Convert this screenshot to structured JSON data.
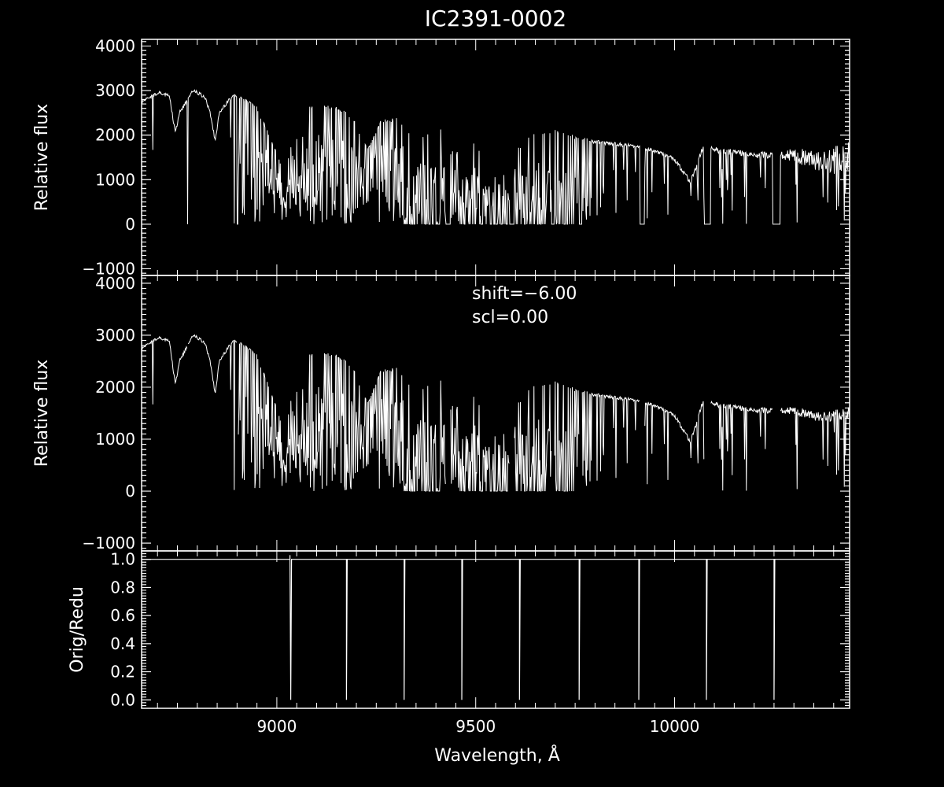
{
  "chart_data": {
    "type": "line",
    "title": "IC2391-0002",
    "xlabel": "Wavelength, Å",
    "xlim": [
      8660,
      10440
    ],
    "xticks": [
      {
        "value": 9000,
        "label": "9000"
      },
      {
        "value": 9500,
        "label": "9500"
      },
      {
        "value": 10000,
        "label": "10000"
      }
    ],
    "colors": {
      "background": "#000000",
      "foreground": "#ffffff"
    },
    "panels": [
      {
        "id": "top",
        "ylabel": "Relative flux",
        "ylim": [
          -1150,
          4150
        ],
        "yticks": [
          {
            "value": 4000,
            "label": "4000"
          },
          {
            "value": 3000,
            "label": "3000"
          },
          {
            "value": 2000,
            "label": "2000"
          },
          {
            "value": 1000,
            "label": "1000"
          },
          {
            "value": 0,
            "label": "0"
          },
          {
            "value": -1000,
            "label": "−1000"
          }
        ],
        "series": [
          {
            "continuum": [
              [
                8660,
                2750
              ],
              [
                8700,
                2950
              ],
              [
                8730,
                2900
              ],
              [
                8740,
                2300
              ],
              [
                8745,
                2050
              ],
              [
                8755,
                2500
              ],
              [
                8790,
                3000
              ],
              [
                8820,
                2850
              ],
              [
                8835,
                2400
              ],
              [
                8845,
                1850
              ],
              [
                8855,
                2500
              ],
              [
                8890,
                2900
              ],
              [
                8910,
                2850
              ],
              [
                8950,
                2600
              ],
              [
                9000,
                1600
              ],
              [
                9020,
                1000
              ],
              [
                9050,
                2500
              ],
              [
                9100,
                2650
              ],
              [
                9150,
                2600
              ],
              [
                9190,
                2400
              ],
              [
                9210,
                2000
              ],
              [
                9230,
                1700
              ],
              [
                9260,
                2300
              ],
              [
                9300,
                2350
              ],
              [
                9350,
                1900
              ],
              [
                9400,
                2150
              ],
              [
                9450,
                2050
              ],
              [
                9500,
                1800
              ],
              [
                9540,
                1200
              ],
              [
                9560,
                850
              ],
              [
                9590,
                1500
              ],
              [
                9640,
                2000
              ],
              [
                9700,
                2100
              ],
              [
                9750,
                1950
              ],
              [
                9800,
                1850
              ],
              [
                9850,
                1800
              ],
              [
                9900,
                1750
              ],
              [
                9950,
                1650
              ],
              [
                10000,
                1450
              ],
              [
                10040,
                950
              ],
              [
                10070,
                1700
              ],
              [
                10120,
                1650
              ],
              [
                10200,
                1550
              ],
              [
                10300,
                1550
              ],
              [
                10350,
                1450
              ],
              [
                10400,
                1450
              ],
              [
                10440,
                1500
              ]
            ],
            "line_depth": [
              [
                8660,
                0.02
              ],
              [
                8890,
                0.02
              ],
              [
                8910,
                0.35
              ],
              [
                8980,
                0.65
              ],
              [
                9060,
                0.85
              ],
              [
                9180,
                0.75
              ],
              [
                9260,
                0.55
              ],
              [
                9320,
                0.95
              ],
              [
                9620,
                0.9
              ],
              [
                9760,
                0.7
              ],
              [
                9800,
                0.3
              ],
              [
                9860,
                0.12
              ],
              [
                9930,
                0.05
              ],
              [
                10440,
                0.08
              ]
            ],
            "noise": [
              [
                8660,
                40
              ],
              [
                9900,
                40
              ],
              [
                10250,
                80
              ],
              [
                10440,
                350
              ]
            ],
            "gaps": [
              [
                8775,
                8777,
                0
              ],
              [
                8900,
                8902,
                0
              ],
              [
                9425,
                9437,
                0
              ],
              [
                9585,
                9597,
                0
              ],
              [
                9690,
                9698,
                0
              ],
              [
                9760,
                9768,
                0
              ],
              [
                9912,
                9924,
                0
              ],
              [
                10074,
                10090,
                0
              ],
              [
                10246,
                10266,
                0
              ]
            ],
            "deep": [
              [
                9320,
                9410
              ],
              [
                9460,
                9580
              ],
              [
                9600,
                9680
              ],
              [
                9700,
                9750
              ]
            ]
          }
        ]
      },
      {
        "id": "middle",
        "ylabel": "Relative flux",
        "ylim": [
          -1150,
          4150
        ],
        "yticks": [
          {
            "value": 4000,
            "label": "4000"
          },
          {
            "value": 3000,
            "label": "3000"
          },
          {
            "value": 2000,
            "label": "2000"
          },
          {
            "value": 1000,
            "label": "1000"
          },
          {
            "value": 0,
            "label": "0"
          },
          {
            "value": -1000,
            "label": "−1000"
          }
        ],
        "annotations": [
          {
            "text": "shift=−6.00",
            "x": 9390,
            "y": 3650
          },
          {
            "text": "scl=0.00",
            "x": 9390,
            "y": 3250
          }
        ],
        "series": [
          {
            "continuum": [
              [
                8660,
                2750
              ],
              [
                8700,
                2950
              ],
              [
                8730,
                2900
              ],
              [
                8740,
                2300
              ],
              [
                8745,
                2050
              ],
              [
                8755,
                2500
              ],
              [
                8790,
                3000
              ],
              [
                8820,
                2850
              ],
              [
                8835,
                2400
              ],
              [
                8845,
                1850
              ],
              [
                8855,
                2500
              ],
              [
                8890,
                2900
              ],
              [
                8910,
                2850
              ],
              [
                8950,
                2600
              ],
              [
                9000,
                1600
              ],
              [
                9020,
                1000
              ],
              [
                9050,
                2500
              ],
              [
                9100,
                2650
              ],
              [
                9150,
                2600
              ],
              [
                9190,
                2400
              ],
              [
                9210,
                2000
              ],
              [
                9230,
                1700
              ],
              [
                9260,
                2300
              ],
              [
                9300,
                2350
              ],
              [
                9350,
                1900
              ],
              [
                9400,
                2150
              ],
              [
                9450,
                2050
              ],
              [
                9500,
                1800
              ],
              [
                9540,
                1200
              ],
              [
                9560,
                850
              ],
              [
                9590,
                1500
              ],
              [
                9640,
                2000
              ],
              [
                9700,
                2100
              ],
              [
                9750,
                1950
              ],
              [
                9800,
                1850
              ],
              [
                9850,
                1800
              ],
              [
                9900,
                1750
              ],
              [
                9950,
                1650
              ],
              [
                10000,
                1450
              ],
              [
                10040,
                950
              ],
              [
                10070,
                1700
              ],
              [
                10120,
                1650
              ],
              [
                10200,
                1550
              ],
              [
                10300,
                1550
              ],
              [
                10350,
                1450
              ],
              [
                10400,
                1450
              ],
              [
                10440,
                1500
              ]
            ],
            "line_depth": [
              [
                8660,
                0.02
              ],
              [
                8890,
                0.02
              ],
              [
                8910,
                0.35
              ],
              [
                8980,
                0.65
              ],
              [
                9060,
                0.85
              ],
              [
                9180,
                0.75
              ],
              [
                9260,
                0.55
              ],
              [
                9320,
                0.95
              ],
              [
                9620,
                0.9
              ],
              [
                9760,
                0.7
              ],
              [
                9800,
                0.3
              ],
              [
                9860,
                0.12
              ],
              [
                9930,
                0.05
              ],
              [
                10440,
                0.08
              ]
            ],
            "noise": [
              [
                8660,
                30
              ],
              [
                9900,
                30
              ],
              [
                10250,
                60
              ],
              [
                10440,
                120
              ]
            ],
            "gaps": [
              [
                8775,
                8777,
                -1
              ],
              [
                8900,
                8902,
                -1
              ],
              [
                9425,
                9437,
                -1
              ],
              [
                9585,
                9597,
                -1
              ],
              [
                9690,
                9698,
                -1
              ],
              [
                9760,
                9768,
                -1
              ],
              [
                9912,
                9924,
                -1
              ],
              [
                10074,
                10090,
                -1
              ],
              [
                10246,
                10266,
                -1
              ]
            ],
            "deep": [
              [
                9320,
                9410
              ],
              [
                9460,
                9580
              ],
              [
                9600,
                9680
              ],
              [
                9700,
                9750
              ]
            ]
          }
        ]
      },
      {
        "id": "bottom",
        "ylabel": "Orig/Redu",
        "ylim": [
          -0.06,
          1.06
        ],
        "yticks": [
          {
            "value": 1.0,
            "label": "1.0"
          },
          {
            "value": 0.8,
            "label": "0.8"
          },
          {
            "value": 0.6,
            "label": "0.6"
          },
          {
            "value": 0.4,
            "label": "0.4"
          },
          {
            "value": 0.2,
            "label": "0.2"
          },
          {
            "value": 0.0,
            "label": "0.0"
          }
        ],
        "series": [
          {
            "baseline": 1.0,
            "spike": {
              "x": 9033,
              "top": 1.03
            },
            "drops": [
              9038,
              9175,
              9320,
              9465,
              9610,
              9760,
              9910,
              10080,
              10250
            ]
          }
        ]
      }
    ]
  }
}
